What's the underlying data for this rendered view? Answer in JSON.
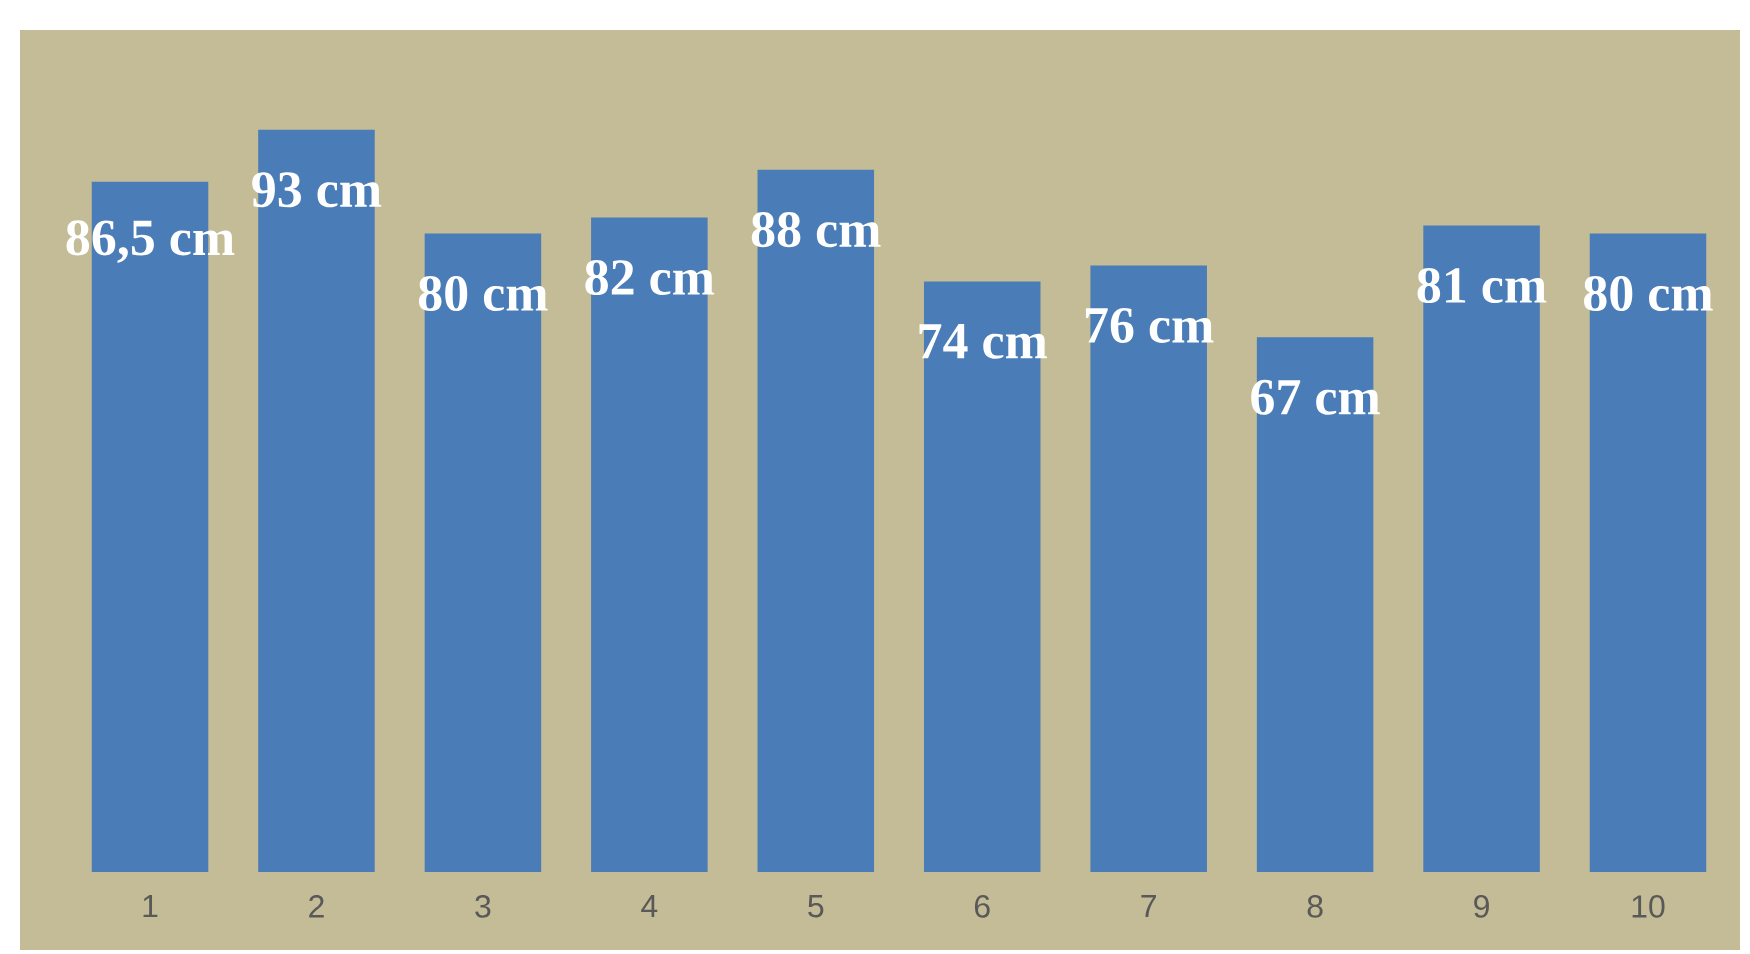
{
  "chart_data": {
    "type": "bar",
    "categories": [
      "1",
      "2",
      "3",
      "4",
      "5",
      "6",
      "7",
      "8",
      "9",
      "10"
    ],
    "values": [
      86.5,
      93,
      80,
      82,
      88,
      74,
      76,
      67,
      81,
      80
    ],
    "value_labels": [
      "86,5 cm",
      "93 cm",
      "80 cm",
      "82 cm",
      "88 cm",
      "74 cm",
      "76 cm",
      "67 cm",
      "81 cm",
      "80 cm"
    ],
    "color": "#4a7cb8",
    "ylim": [
      0,
      105
    ],
    "tick_labels": "x"
  }
}
